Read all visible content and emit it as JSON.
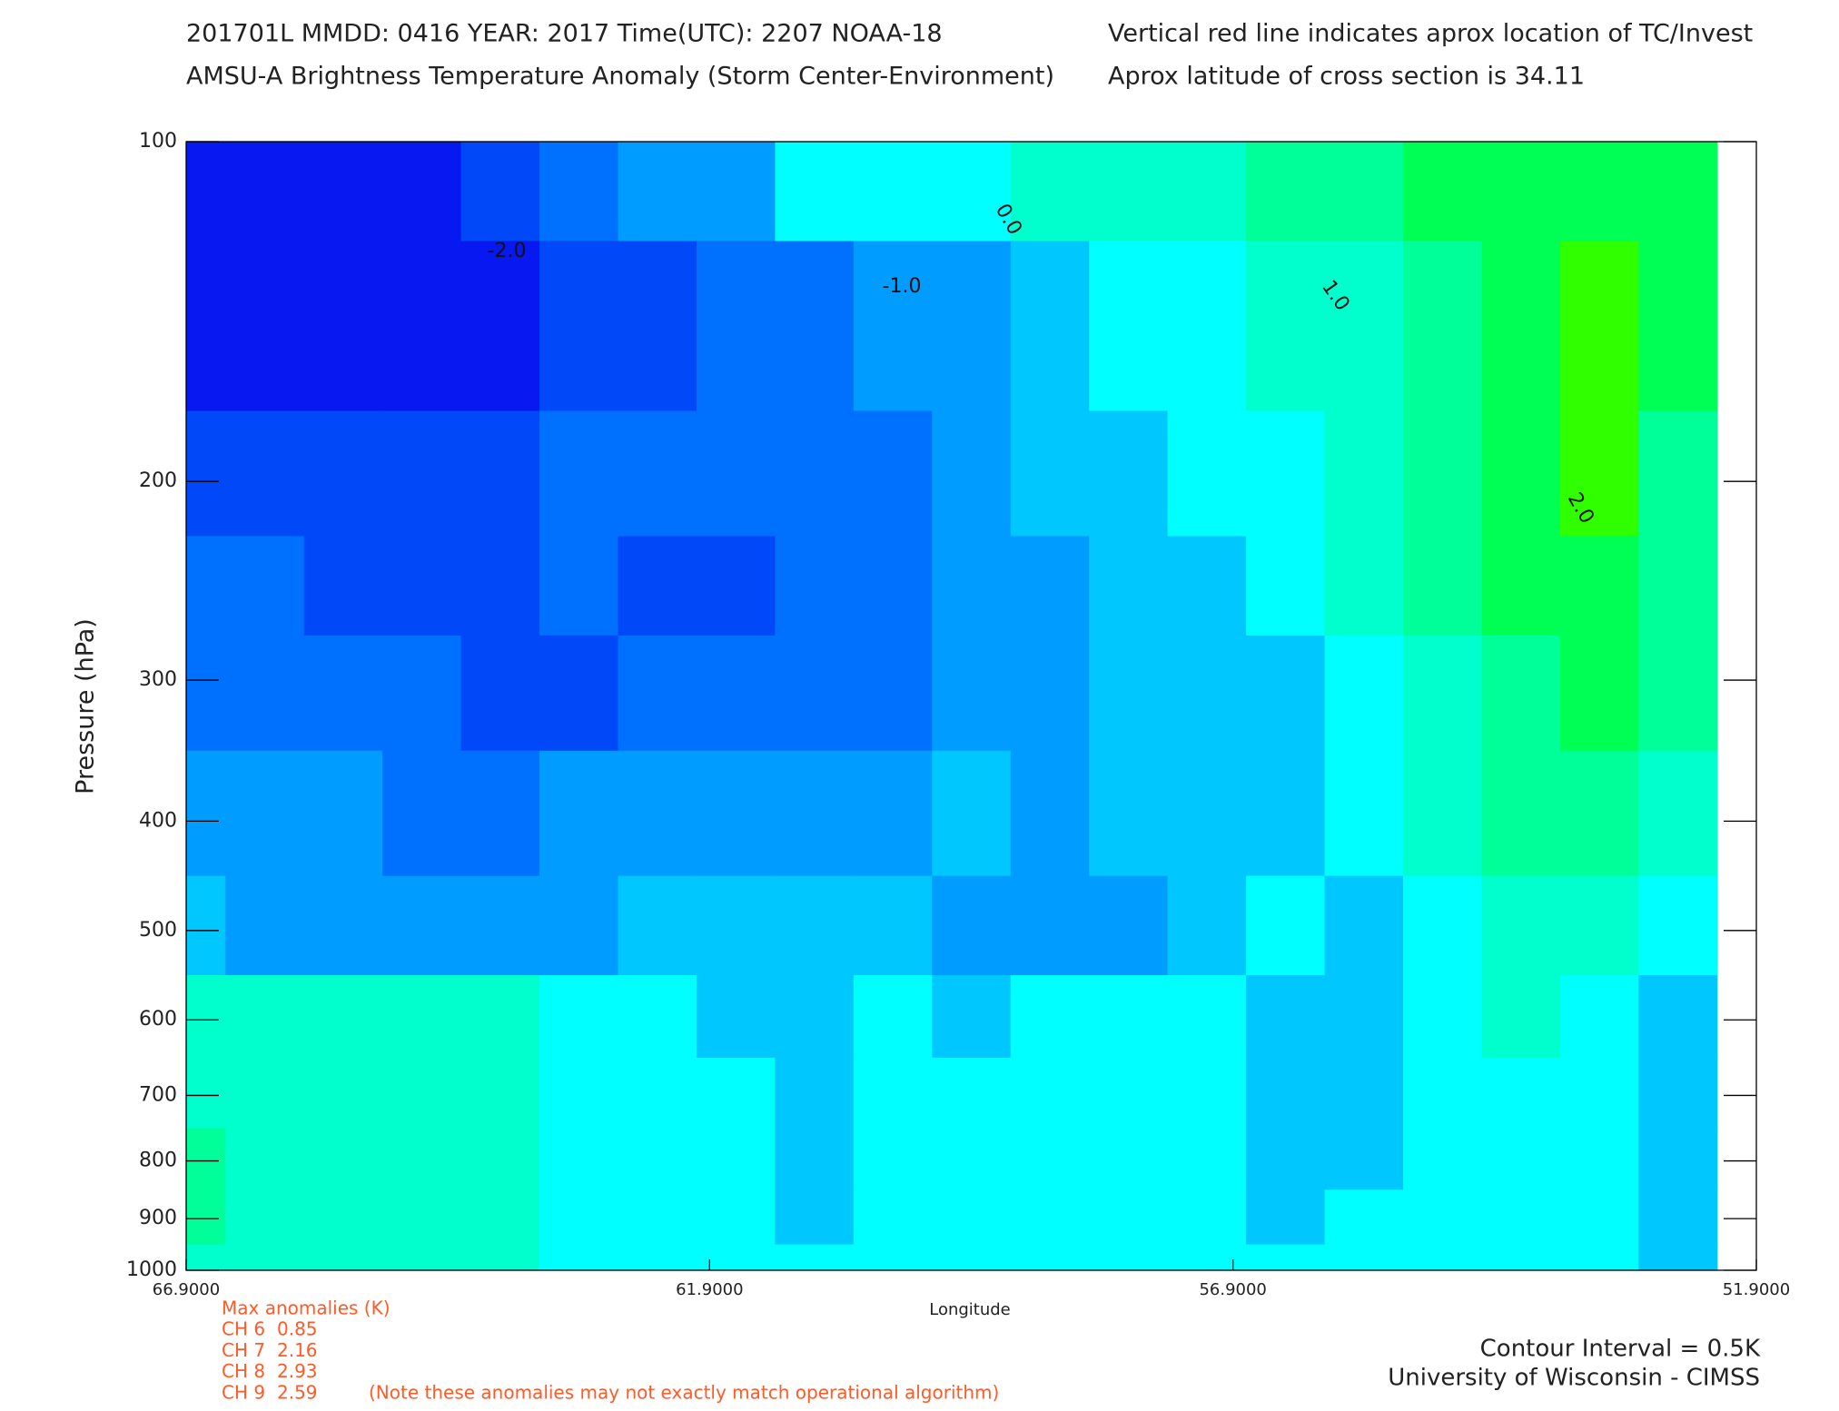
{
  "chart_data": {
    "type": "contour",
    "title": "201701L  MMDD: 0416 YEAR: 2017 Time(UTC): 2207 NOAA-18",
    "subtitle": "AMSU-A Brightness Temperature Anomaly (Storm Center-Environment)",
    "note_line1": "Vertical red line indicates aprox location of TC/Invest",
    "note_line2": "Aprox latitude of cross section is 34.11",
    "x_label": "Longitude",
    "y_label": "Pressure (hPa)",
    "xlim": [
      66.9,
      51.9
    ],
    "xticks": [
      {
        "value": 66.9,
        "label": "66.9000"
      },
      {
        "value": 61.9,
        "label": "61.9000"
      },
      {
        "value": 56.9,
        "label": "56.9000"
      },
      {
        "value": 51.9,
        "label": "51.9000"
      }
    ],
    "ylim": [
      100,
      1000
    ],
    "y_log": true,
    "y_inverted": true,
    "yticks": [
      100,
      200,
      300,
      400,
      500,
      600,
      700,
      800,
      900,
      1000
    ],
    "x": [
      66.9,
      66.15,
      65.4,
      64.65,
      63.9,
      63.15,
      62.4,
      61.65,
      60.9,
      60.15,
      59.4,
      58.65,
      57.9,
      57.15,
      56.4,
      55.65,
      54.9,
      54.15,
      53.4,
      52.65
    ],
    "y": [
      100,
      150,
      200,
      250,
      300,
      400,
      500,
      600,
      700,
      800,
      900,
      1000
    ],
    "z": [
      [
        -2.3,
        -2.3,
        -2.3,
        -2.3,
        -1.75,
        -1.25,
        -0.75,
        -0.75,
        0.25,
        0.25,
        0.25,
        0.75,
        0.75,
        0.75,
        1.25,
        1.25,
        1.75,
        1.75,
        1.75,
        1.75
      ],
      [
        -2.3,
        -2.3,
        -2.3,
        -2.3,
        -2.3,
        -1.75,
        -1.75,
        -1.25,
        -1.25,
        -0.75,
        -0.75,
        -0.25,
        0.25,
        0.25,
        0.75,
        0.75,
        1.25,
        1.75,
        2.25,
        1.75
      ],
      [
        -1.75,
        -1.75,
        -1.75,
        -1.75,
        -1.75,
        -1.25,
        -1.25,
        -1.25,
        -1.25,
        -1.25,
        -0.75,
        -0.25,
        -0.25,
        0.25,
        0.25,
        0.75,
        1.25,
        1.75,
        2.25,
        1.25
      ],
      [
        -1.25,
        -1.25,
        -1.75,
        -1.75,
        -1.75,
        -1.25,
        -1.75,
        -1.75,
        -1.25,
        -1.25,
        -0.75,
        -0.75,
        -0.25,
        -0.25,
        0.25,
        0.75,
        1.25,
        1.75,
        1.75,
        1.25
      ],
      [
        -1.25,
        -1.25,
        -1.25,
        -1.25,
        -1.75,
        -1.75,
        -1.25,
        -1.25,
        -1.25,
        -1.25,
        -0.75,
        -0.75,
        -0.25,
        -0.25,
        -0.25,
        0.25,
        0.75,
        1.25,
        1.75,
        1.25
      ],
      [
        -0.75,
        -0.75,
        -0.75,
        -1.25,
        -1.25,
        -0.75,
        -0.75,
        -0.75,
        -0.75,
        -0.75,
        -0.25,
        -0.75,
        -0.25,
        -0.25,
        -0.25,
        0.25,
        0.75,
        1.25,
        1.25,
        0.75
      ],
      [
        -0.25,
        -0.75,
        -0.75,
        -0.75,
        -0.75,
        -0.75,
        -0.25,
        -0.25,
        -0.25,
        -0.25,
        -0.75,
        -0.75,
        -0.75,
        -0.25,
        0.25,
        -0.25,
        0.25,
        0.75,
        0.75,
        0.25
      ],
      [
        0.75,
        0.75,
        0.75,
        0.75,
        0.75,
        0.25,
        0.25,
        -0.25,
        -0.25,
        0.25,
        -0.25,
        0.25,
        0.25,
        0.25,
        -0.25,
        -0.25,
        0.25,
        0.75,
        0.25,
        -0.25
      ],
      [
        0.75,
        0.75,
        0.75,
        0.75,
        0.75,
        0.25,
        0.25,
        0.25,
        -0.25,
        0.25,
        0.25,
        0.25,
        0.25,
        0.25,
        -0.25,
        -0.25,
        0.25,
        0.25,
        0.25,
        -0.25
      ],
      [
        1.25,
        0.75,
        0.75,
        0.75,
        0.75,
        0.25,
        0.25,
        0.25,
        -0.25,
        0.25,
        0.25,
        0.25,
        0.25,
        0.25,
        -0.25,
        -0.25,
        0.25,
        0.25,
        0.25,
        -0.25
      ],
      [
        1.25,
        0.75,
        0.75,
        0.75,
        0.75,
        0.25,
        0.25,
        0.25,
        -0.25,
        0.25,
        0.25,
        0.25,
        0.25,
        0.25,
        -0.25,
        0.25,
        0.25,
        0.25,
        0.25,
        -0.25
      ],
      [
        0.75,
        0.75,
        0.75,
        0.75,
        0.75,
        0.25,
        0.25,
        0.25,
        0.25,
        0.25,
        0.25,
        0.25,
        0.25,
        0.25,
        0.25,
        0.25,
        0.25,
        0.25,
        0.25,
        -0.25
      ]
    ],
    "levels": [
      -2,
      -1.5,
      -1,
      -0.5,
      0,
      0.5,
      1,
      1.5,
      2
    ],
    "colors": [
      "#0818f0",
      "#0048f8",
      "#0070ff",
      "#009cff",
      "#00c8ff",
      "#00ffff",
      "#00ffcc",
      "#00ff99",
      "#00ff55",
      "#30ff00"
    ],
    "contour_labels": [
      {
        "value": -2,
        "label": "-2.0"
      },
      {
        "value": -1,
        "label": "-1.0"
      },
      {
        "value": 0,
        "label": "0.0"
      },
      {
        "value": 1,
        "label": "1.0"
      },
      {
        "value": 2,
        "label": "2.0"
      }
    ],
    "anomalies_title": "Max anomalies (K)",
    "anomalies": [
      {
        "label": "CH 6",
        "value": 0.85
      },
      {
        "label": "CH 7",
        "value": 2.16
      },
      {
        "label": "CH 8",
        "value": 2.93
      },
      {
        "label": "CH 9",
        "value": 2.59
      }
    ],
    "anomalies_note": "(Note these anomalies may not exactly match operational algorithm)",
    "contour_interval": "Contour Interval = 0.5K",
    "credit": "University of Wisconsin - CIMSS"
  }
}
